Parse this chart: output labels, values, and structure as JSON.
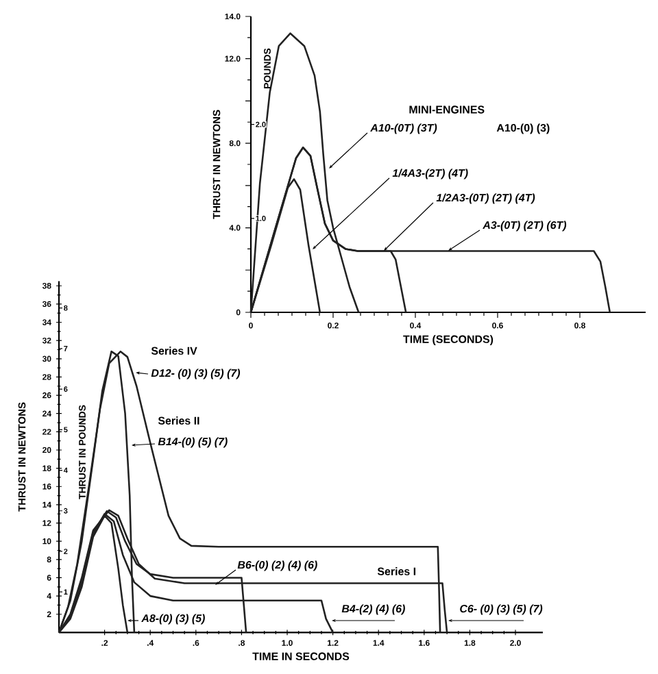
{
  "chart_data": [
    {
      "type": "line",
      "xlabel": "TIME (SECONDS)",
      "ylabel": "THRUST IN NEWTONS",
      "y2label": "POUNDS",
      "xlim": [
        0,
        0.96
      ],
      "xticks": [
        0,
        0.2,
        0.4,
        0.6,
        0.8
      ],
      "ylim": [
        0,
        14
      ],
      "yticks": [
        0,
        {
          "value": 2,
          "label": null
        },
        {
          "value": 4,
          "label": "4.0"
        },
        {
          "value": 6,
          "label": null
        },
        {
          "value": 8,
          "label": "8.0"
        },
        {
          "value": 10,
          "label": null
        },
        {
          "value": 12,
          "label": "12.0"
        },
        {
          "value": 14,
          "label": "14.0"
        }
      ],
      "y2lim": [
        0,
        3.15
      ],
      "y2ticks": [
        {
          "value": 1,
          "label": "1.0"
        },
        {
          "value": 2,
          "label": "2.0"
        }
      ],
      "annotations": [
        "MINI-ENGINES",
        "A10-(0) (3)"
      ],
      "series": [
        {
          "name": "A10-(0T) (3T)",
          "color": "#222222",
          "x": [
            0,
            0.022,
            0.046,
            0.068,
            0.096,
            0.13,
            0.155,
            0.168,
            0.176,
            0.186,
            0.2,
            0.22,
            0.24,
            0.262
          ],
          "values": [
            0,
            6.1,
            10.4,
            12.6,
            13.2,
            12.6,
            11.2,
            9.5,
            7.5,
            5.3,
            4.0,
            2.6,
            1.2,
            0
          ]
        },
        {
          "name": "1/4A3-(2T) (4T)",
          "color": "#222222",
          "x": [
            0,
            0.05,
            0.09,
            0.105,
            0.12,
            0.14,
            0.168
          ],
          "values": [
            0,
            3.2,
            5.9,
            6.3,
            5.8,
            3.2,
            0
          ]
        },
        {
          "name": "1/2A3-(0T) (2T) (4T)",
          "color": "#222222",
          "x": [
            0,
            0.06,
            0.11,
            0.127,
            0.145,
            0.16,
            0.18,
            0.2,
            0.23,
            0.26,
            0.34,
            0.352,
            0.365,
            0.377
          ],
          "values": [
            0,
            4,
            7.3,
            7.8,
            7.4,
            6,
            4.2,
            3.4,
            3.0,
            2.9,
            2.9,
            2.5,
            1.2,
            0
          ]
        },
        {
          "name": "A3-(0T) (2T) (6T)",
          "color": "#222222",
          "x": [
            0,
            0.06,
            0.11,
            0.127,
            0.145,
            0.16,
            0.18,
            0.2,
            0.23,
            0.26,
            0.834,
            0.85,
            0.862,
            0.873
          ],
          "values": [
            0,
            4,
            7.3,
            7.8,
            7.4,
            6,
            4.2,
            3.4,
            3.0,
            2.9,
            2.9,
            2.4,
            1.2,
            0
          ]
        }
      ]
    },
    {
      "type": "line",
      "xlabel": "TIME IN SECONDS",
      "ylabel": "THRUST IN NEWTONS",
      "y2label": "THRUST IN POUNDS",
      "xlim": [
        0,
        2.12
      ],
      "xticks": [
        {
          "value": 0.2,
          "label": ".2"
        },
        {
          "value": 0.4,
          "label": ".4"
        },
        {
          "value": 0.6,
          "label": ".6"
        },
        {
          "value": 0.8,
          "label": ".8"
        },
        {
          "value": 1.0,
          "label": "1.0"
        },
        {
          "value": 1.2,
          "label": "1.2"
        },
        {
          "value": 1.4,
          "label": "1.4"
        },
        {
          "value": 1.6,
          "label": "1.6"
        },
        {
          "value": 1.8,
          "label": "1.8"
        },
        {
          "value": 2.0,
          "label": "2.0"
        }
      ],
      "ylim": [
        0,
        38.5
      ],
      "yticks": [
        2,
        4,
        6,
        8,
        10,
        12,
        14,
        16,
        18,
        20,
        22,
        24,
        26,
        28,
        30,
        32,
        34,
        36,
        38
      ],
      "y2lim": [
        0,
        8.66
      ],
      "y2ticks": [
        1,
        2,
        3,
        4,
        5,
        6,
        7,
        8
      ],
      "annotations": [
        "Series IV",
        "Series II",
        "Series I"
      ],
      "series": [
        {
          "name": "D12- (0) (3) (5) (7)",
          "color": "#222222",
          "x": [
            0,
            0.04,
            0.08,
            0.13,
            0.18,
            0.22,
            0.27,
            0.3,
            0.34,
            0.4,
            0.48,
            0.53,
            0.58,
            0.7,
            1.66,
            1.665,
            1.67
          ],
          "values": [
            0,
            2.8,
            7.5,
            15.8,
            24.5,
            29.5,
            30.8,
            30.2,
            27,
            20.8,
            12.8,
            10.3,
            9.5,
            9.4,
            9.4,
            5,
            0
          ]
        },
        {
          "name": "B14-(0) (5) (7)",
          "color": "#222222",
          "x": [
            0,
            0.05,
            0.1,
            0.15,
            0.19,
            0.23,
            0.26,
            0.29,
            0.31,
            0.32,
            0.33
          ],
          "values": [
            0,
            3.5,
            10,
            19,
            26.5,
            30.8,
            30.3,
            24,
            15,
            6,
            0
          ]
        },
        {
          "name": "B6-(0) (2) (4) (6)",
          "color": "#222222",
          "x": [
            0,
            0.05,
            0.1,
            0.15,
            0.21,
            0.25,
            0.29,
            0.34,
            0.4,
            0.5,
            0.8,
            0.81,
            0.82
          ],
          "values": [
            0,
            1.9,
            5.8,
            11,
            13.3,
            12.6,
            10,
            7.5,
            6.4,
            6.0,
            6.0,
            3,
            0
          ]
        },
        {
          "name": "A8-(0) (3) (5)",
          "color": "#222222",
          "x": [
            0,
            0.05,
            0.1,
            0.15,
            0.2,
            0.23,
            0.26,
            0.28,
            0.3
          ],
          "values": [
            0,
            1.5,
            5,
            10.5,
            12.8,
            12,
            7,
            3,
            0
          ]
        },
        {
          "name": "B4-(2) (4) (6)",
          "color": "#222222",
          "x": [
            0,
            0.05,
            0.1,
            0.15,
            0.2,
            0.24,
            0.28,
            0.33,
            0.4,
            0.5,
            1.15,
            1.17,
            1.2
          ],
          "values": [
            0,
            1.8,
            5.5,
            10.8,
            13,
            12.2,
            8.5,
            5.5,
            4.0,
            3.5,
            3.5,
            1.5,
            0
          ]
        },
        {
          "name": "C6- (0) (3) (5) (7)",
          "color": "#222222",
          "x": [
            0,
            0.05,
            0.1,
            0.15,
            0.22,
            0.26,
            0.3,
            0.35,
            0.42,
            0.55,
            1.68,
            1.69,
            1.7
          ],
          "values": [
            0,
            2,
            6,
            11.2,
            13.4,
            12.8,
            10.3,
            7.5,
            5.9,
            5.4,
            5.4,
            2.5,
            0
          ]
        }
      ]
    }
  ]
}
